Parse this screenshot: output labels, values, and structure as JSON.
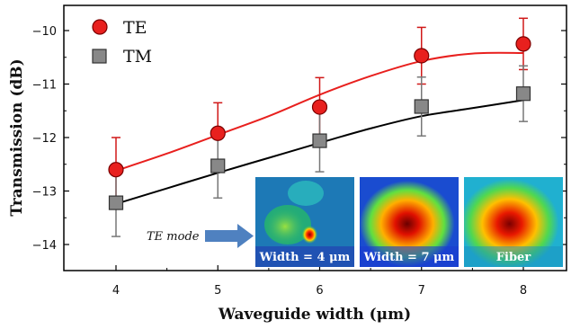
{
  "chart_data": {
    "type": "scatter",
    "xlabel": "Waveguide width (μm)",
    "ylabel": "Transmission (dB)",
    "xlim": [
      3.5,
      8.5
    ],
    "ylim": [
      -14.5,
      -9.6
    ],
    "x_ticks": [
      4,
      5,
      6,
      7,
      8
    ],
    "y_ticks": [
      -10,
      -11,
      -12,
      -13,
      -14
    ],
    "x": [
      4,
      5,
      6,
      7,
      8
    ],
    "series": [
      {
        "name": "TE",
        "marker": "circle",
        "color": "#e8201e",
        "values": [
          -12.6,
          -11.92,
          -11.43,
          -10.47,
          -10.25
        ],
        "error_upper": [
          0.6,
          0.57,
          0.55,
          0.53,
          0.48
        ],
        "error_lower": [
          0.6,
          0.57,
          0.55,
          0.53,
          0.48
        ],
        "fit_line_color": "#e8201e",
        "fit": [
          [
            4,
            -12.62
          ],
          [
            4.5,
            -12.3
          ],
          [
            5,
            -11.95
          ],
          [
            5.5,
            -11.6
          ],
          [
            6,
            -11.2
          ],
          [
            6.5,
            -10.85
          ],
          [
            7,
            -10.57
          ],
          [
            7.5,
            -10.43
          ],
          [
            8,
            -10.42
          ]
        ]
      },
      {
        "name": "TM",
        "marker": "square",
        "color": "#888888",
        "values": [
          -13.22,
          -12.53,
          -12.06,
          -11.42,
          -11.18
        ],
        "error_upper": [
          0.63,
          0.6,
          0.58,
          0.55,
          0.52
        ],
        "error_lower": [
          0.63,
          0.6,
          0.58,
          0.55,
          0.52
        ],
        "fit_line_color": "#000000",
        "fit": [
          [
            4,
            -13.24
          ],
          [
            4.5,
            -12.95
          ],
          [
            5,
            -12.66
          ],
          [
            5.5,
            -12.38
          ],
          [
            6,
            -12.1
          ],
          [
            6.5,
            -11.83
          ],
          [
            7,
            -11.6
          ],
          [
            7.5,
            -11.45
          ],
          [
            8,
            -11.3
          ]
        ]
      }
    ],
    "legend_position": "top-left",
    "grid": false
  },
  "annotations": {
    "mode_label": "TE mode",
    "insets": [
      {
        "label": "Width = 4 μm"
      },
      {
        "label": "Width = 7 μm"
      },
      {
        "label": "Fiber"
      }
    ]
  }
}
